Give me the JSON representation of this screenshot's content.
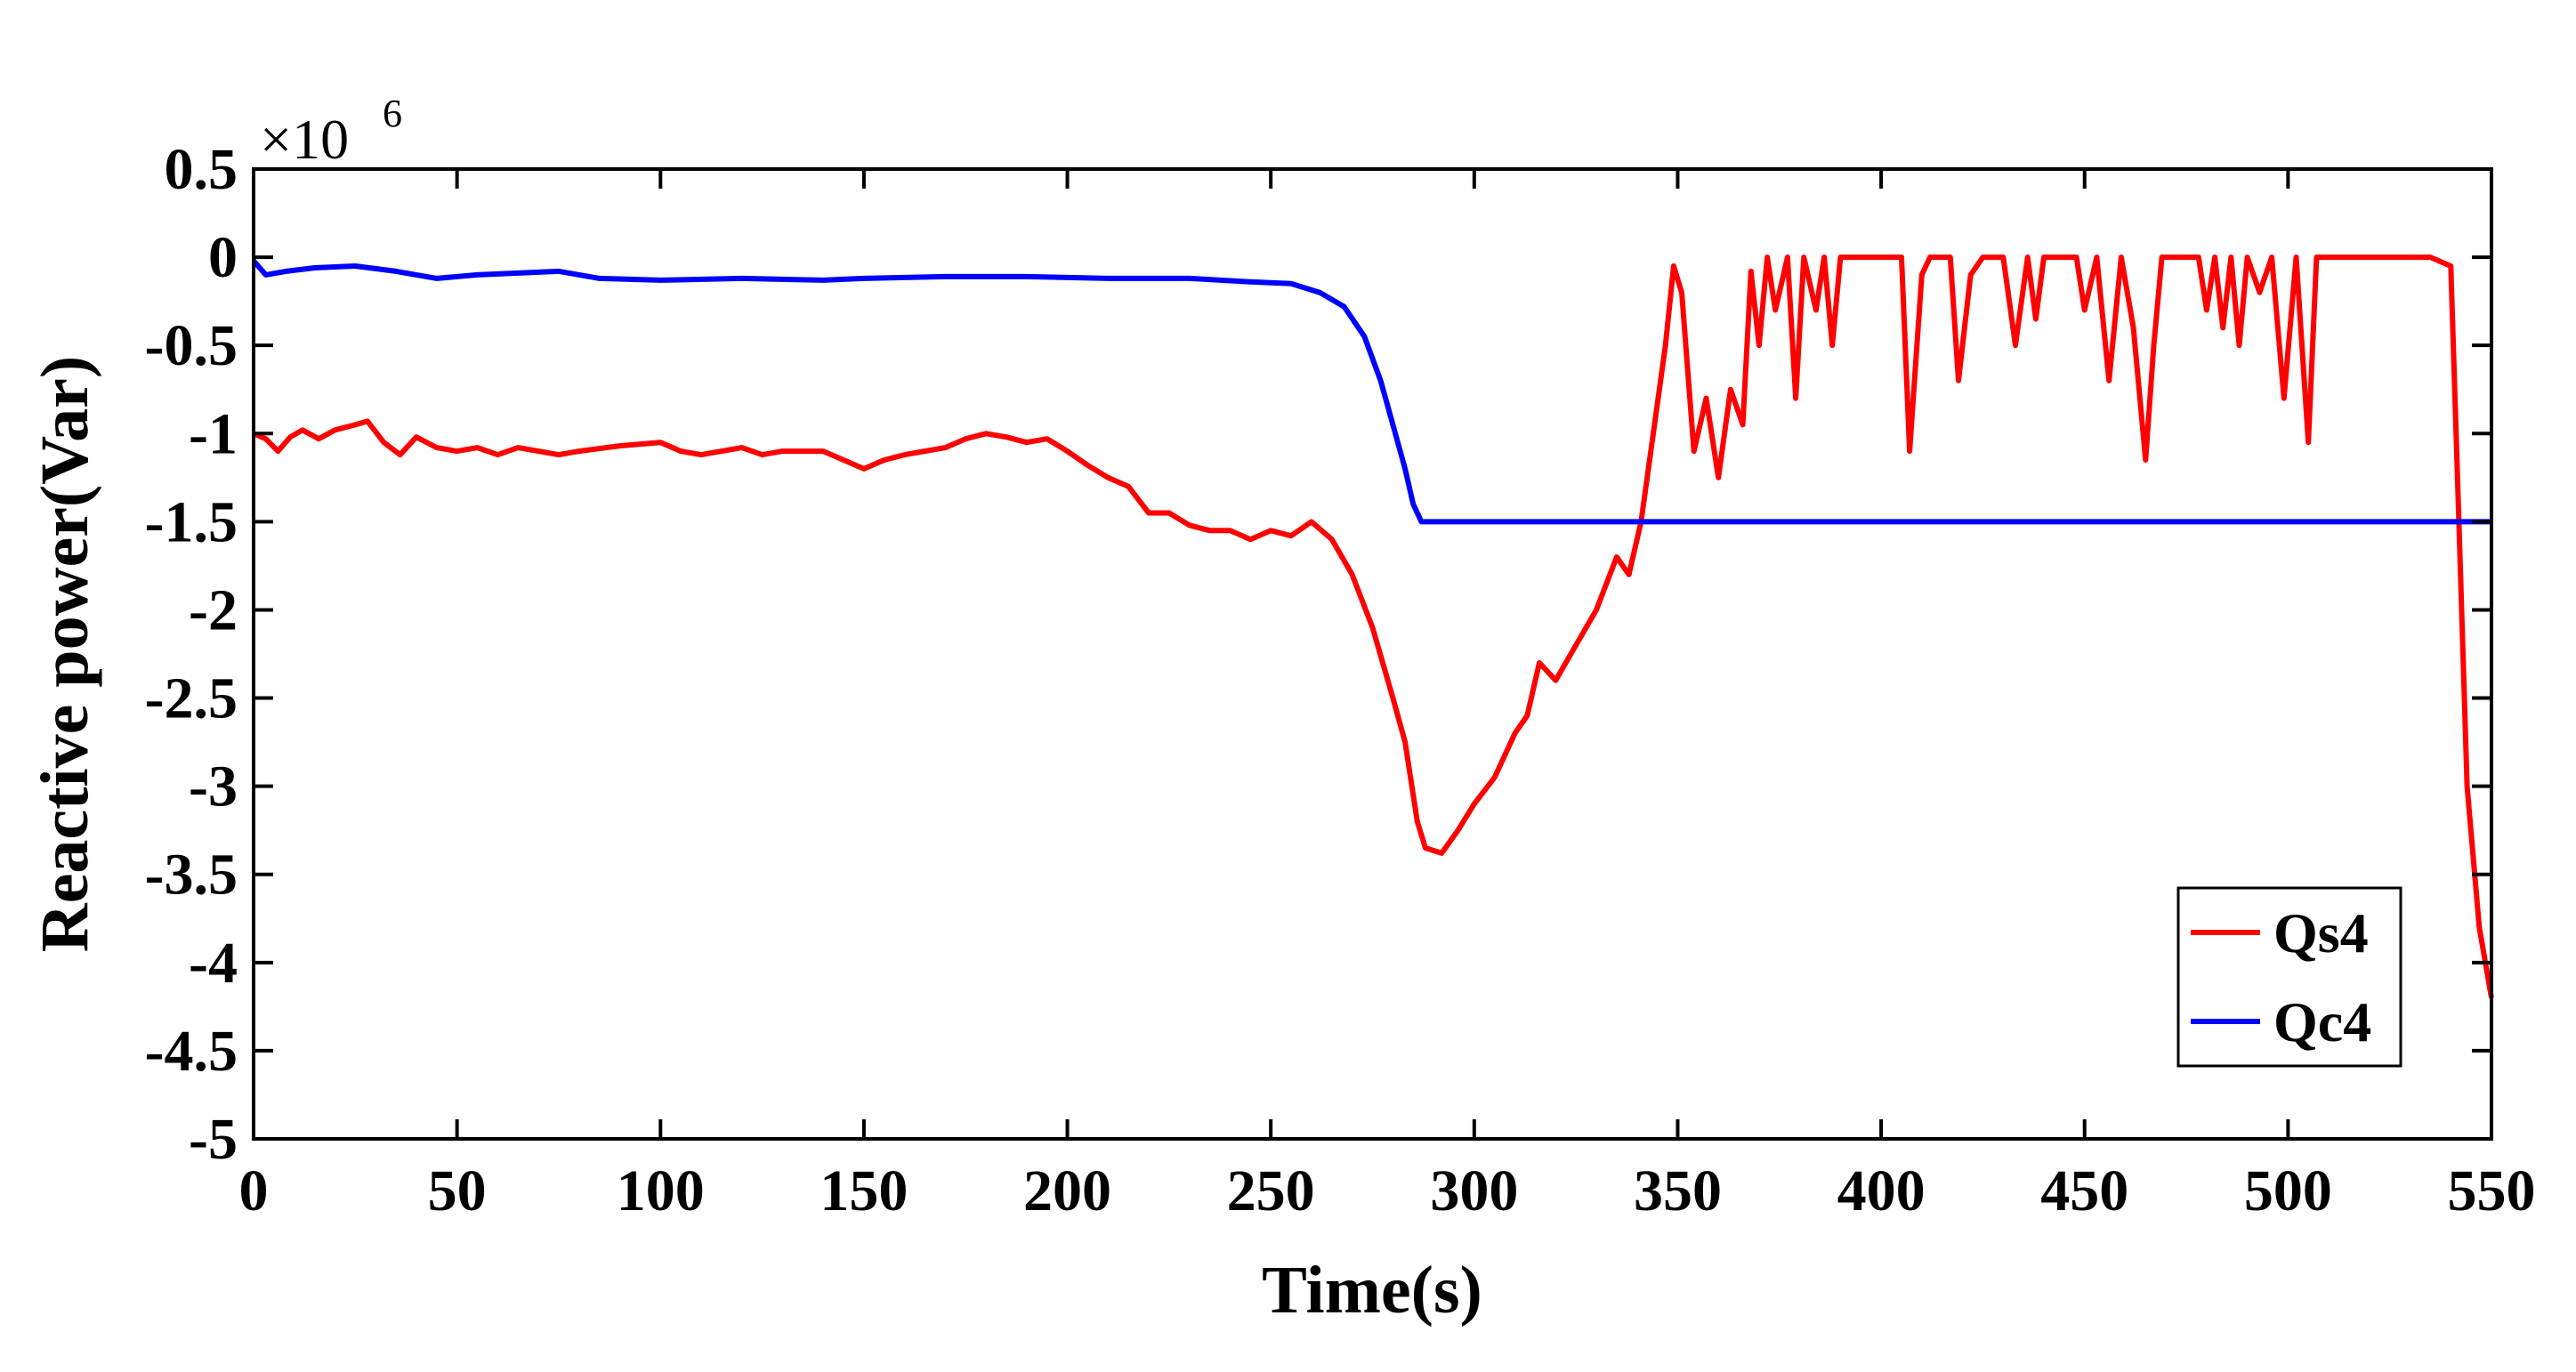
{
  "chart_data": {
    "type": "line",
    "title": "",
    "xlabel": "Time(s)",
    "ylabel": "Reactive power(Var)",
    "y_multiplier": {
      "base": "×10",
      "exponent": "6"
    },
    "xlim": [
      0,
      550
    ],
    "ylim": [
      -5,
      0.5
    ],
    "xticks": [
      0,
      50,
      100,
      150,
      200,
      250,
      300,
      350,
      400,
      450,
      500,
      550
    ],
    "yticks": [
      0.5,
      0,
      -0.5,
      -1,
      -1.5,
      -2,
      -2.5,
      -3,
      -3.5,
      -4,
      -4.5,
      -5
    ],
    "ytick_labels": [
      "0.5",
      "0",
      "-0.5",
      "-1",
      "-1.5",
      "-2",
      "-2.5",
      "-3",
      "-3.5",
      "-4",
      "-4.5",
      "-5"
    ],
    "legend_position": "bottom-right",
    "series": [
      {
        "name": "Qs4",
        "color": "#ff0000",
        "points": [
          [
            0,
            -1.0
          ],
          [
            3,
            -1.03
          ],
          [
            6,
            -1.1
          ],
          [
            9,
            -1.02
          ],
          [
            12,
            -0.98
          ],
          [
            16,
            -1.03
          ],
          [
            20,
            -0.98
          ],
          [
            25,
            -0.95
          ],
          [
            28,
            -0.93
          ],
          [
            32,
            -1.05
          ],
          [
            36,
            -1.12
          ],
          [
            40,
            -1.02
          ],
          [
            45,
            -1.08
          ],
          [
            50,
            -1.1
          ],
          [
            55,
            -1.08
          ],
          [
            60,
            -1.12
          ],
          [
            65,
            -1.08
          ],
          [
            70,
            -1.1
          ],
          [
            75,
            -1.12
          ],
          [
            80,
            -1.1
          ],
          [
            90,
            -1.07
          ],
          [
            100,
            -1.05
          ],
          [
            105,
            -1.1
          ],
          [
            110,
            -1.12
          ],
          [
            115,
            -1.1
          ],
          [
            120,
            -1.08
          ],
          [
            125,
            -1.12
          ],
          [
            130,
            -1.1
          ],
          [
            140,
            -1.1
          ],
          [
            145,
            -1.15
          ],
          [
            150,
            -1.2
          ],
          [
            155,
            -1.15
          ],
          [
            160,
            -1.12
          ],
          [
            170,
            -1.08
          ],
          [
            175,
            -1.03
          ],
          [
            180,
            -1.0
          ],
          [
            185,
            -1.02
          ],
          [
            190,
            -1.05
          ],
          [
            195,
            -1.03
          ],
          [
            200,
            -1.1
          ],
          [
            205,
            -1.18
          ],
          [
            210,
            -1.25
          ],
          [
            215,
            -1.3
          ],
          [
            220,
            -1.45
          ],
          [
            225,
            -1.45
          ],
          [
            230,
            -1.52
          ],
          [
            235,
            -1.55
          ],
          [
            240,
            -1.55
          ],
          [
            245,
            -1.6
          ],
          [
            250,
            -1.55
          ],
          [
            255,
            -1.58
          ],
          [
            260,
            -1.5
          ],
          [
            265,
            -1.6
          ],
          [
            270,
            -1.8
          ],
          [
            275,
            -2.1
          ],
          [
            280,
            -2.5
          ],
          [
            283,
            -2.75
          ],
          [
            286,
            -3.2
          ],
          [
            288,
            -3.35
          ],
          [
            292,
            -3.38
          ],
          [
            296,
            -3.25
          ],
          [
            300,
            -3.1
          ],
          [
            305,
            -2.95
          ],
          [
            310,
            -2.7
          ],
          [
            313,
            -2.6
          ],
          [
            316,
            -2.3
          ],
          [
            320,
            -2.4
          ],
          [
            325,
            -2.2
          ],
          [
            330,
            -2.0
          ],
          [
            335,
            -1.7
          ],
          [
            338,
            -1.8
          ],
          [
            341,
            -1.5
          ],
          [
            344,
            -1.0
          ],
          [
            347,
            -0.5
          ],
          [
            349,
            -0.05
          ],
          [
            351,
            -0.2
          ],
          [
            354,
            -1.1
          ],
          [
            357,
            -0.8
          ],
          [
            360,
            -1.25
          ],
          [
            363,
            -0.75
          ],
          [
            366,
            -0.95
          ],
          [
            368,
            -0.08
          ],
          [
            370,
            -0.5
          ],
          [
            372,
            -0.0
          ],
          [
            374,
            -0.3
          ],
          [
            377,
            -0.0
          ],
          [
            379,
            -0.8
          ],
          [
            381,
            -0.0
          ],
          [
            384,
            -0.3
          ],
          [
            386,
            -0.0
          ],
          [
            388,
            -0.5
          ],
          [
            390,
            -0.0
          ],
          [
            398,
            0.0
          ],
          [
            405,
            0.0
          ],
          [
            407,
            -1.1
          ],
          [
            410,
            -0.1
          ],
          [
            412,
            0.0
          ],
          [
            417,
            0.0
          ],
          [
            419,
            -0.7
          ],
          [
            422,
            -0.1
          ],
          [
            425,
            0.0
          ],
          [
            430,
            0.0
          ],
          [
            433,
            -0.5
          ],
          [
            436,
            0.0
          ],
          [
            438,
            -0.35
          ],
          [
            440,
            0.0
          ],
          [
            448,
            0.0
          ],
          [
            450,
            -0.3
          ],
          [
            453,
            0.0
          ],
          [
            456,
            -0.7
          ],
          [
            459,
            0.0
          ],
          [
            462,
            -0.4
          ],
          [
            465,
            -1.15
          ],
          [
            467,
            -0.5
          ],
          [
            469,
            0.0
          ],
          [
            478,
            0.0
          ],
          [
            480,
            -0.3
          ],
          [
            482,
            0.0
          ],
          [
            484,
            -0.4
          ],
          [
            486,
            0.0
          ],
          [
            488,
            -0.5
          ],
          [
            490,
            0.0
          ],
          [
            493,
            -0.2
          ],
          [
            496,
            0.0
          ],
          [
            499,
            -0.8
          ],
          [
            502,
            0.0
          ],
          [
            505,
            -1.05
          ],
          [
            507,
            0.0
          ],
          [
            515,
            0.0
          ],
          [
            525,
            0.0
          ],
          [
            535,
            0.0
          ],
          [
            540,
            -0.05
          ],
          [
            542,
            -1.5
          ],
          [
            544,
            -3.0
          ],
          [
            547,
            -3.8
          ],
          [
            550,
            -4.2
          ]
        ]
      },
      {
        "name": "Qc4",
        "color": "#0000ff",
        "points": [
          [
            0,
            -0.02
          ],
          [
            3,
            -0.1
          ],
          [
            8,
            -0.08
          ],
          [
            15,
            -0.06
          ],
          [
            25,
            -0.05
          ],
          [
            35,
            -0.08
          ],
          [
            45,
            -0.12
          ],
          [
            55,
            -0.1
          ],
          [
            65,
            -0.09
          ],
          [
            75,
            -0.08
          ],
          [
            85,
            -0.12
          ],
          [
            100,
            -0.13
          ],
          [
            120,
            -0.12
          ],
          [
            140,
            -0.13
          ],
          [
            150,
            -0.12
          ],
          [
            170,
            -0.11
          ],
          [
            190,
            -0.11
          ],
          [
            210,
            -0.12
          ],
          [
            230,
            -0.12
          ],
          [
            245,
            -0.14
          ],
          [
            255,
            -0.15
          ],
          [
            262,
            -0.2
          ],
          [
            268,
            -0.28
          ],
          [
            273,
            -0.45
          ],
          [
            277,
            -0.7
          ],
          [
            280,
            -0.95
          ],
          [
            283,
            -1.2
          ],
          [
            285,
            -1.4
          ],
          [
            287,
            -1.5
          ],
          [
            300,
            -1.5
          ],
          [
            350,
            -1.5
          ],
          [
            400,
            -1.5
          ],
          [
            450,
            -1.5
          ],
          [
            500,
            -1.5
          ],
          [
            550,
            -1.5
          ]
        ]
      }
    ]
  }
}
